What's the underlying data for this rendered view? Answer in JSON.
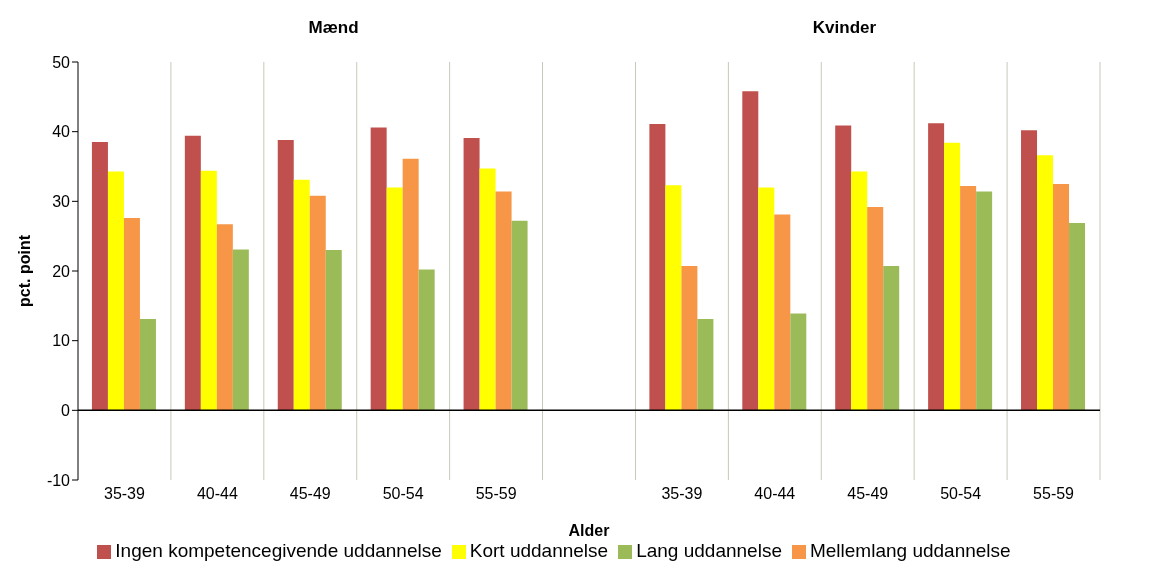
{
  "chart_data": {
    "type": "bar",
    "annotations": [
      "Mænd",
      "Kvinder"
    ],
    "xlabel": "Alder",
    "ylabel": "pct. point",
    "categories": [
      "35-39",
      "40-44",
      "45-49",
      "50-54",
      "55-59",
      null,
      "35-39",
      "40-44",
      "45-49",
      "50-54",
      "55-59"
    ],
    "series": [
      {
        "name": "Ingen kompetencegivende uddannelse",
        "color": "#c0504d",
        "values": [
          38.5,
          39.4,
          38.8,
          40.6,
          39.1,
          null,
          41.1,
          45.8,
          40.9,
          41.2,
          40.2
        ]
      },
      {
        "name": "Kort uddannelse",
        "color": "#ffff00",
        "values": [
          34.3,
          34.4,
          33.1,
          32.0,
          34.7,
          null,
          32.3,
          32.0,
          34.3,
          38.4,
          36.6
        ]
      },
      {
        "name": "Mellemlang uddannelse",
        "color": "#f79646",
        "values": [
          27.6,
          26.7,
          30.8,
          36.1,
          31.4,
          null,
          20.7,
          28.1,
          29.2,
          32.2,
          32.5
        ]
      },
      {
        "name": "Lang uddannelse",
        "color": "#9bbb59",
        "values": [
          13.1,
          23.1,
          23.0,
          20.2,
          27.2,
          null,
          13.1,
          13.9,
          20.7,
          31.4,
          26.9
        ]
      }
    ],
    "ylim": [
      -10,
      50
    ],
    "yticks": [
      -10,
      0,
      10,
      20,
      30,
      40,
      50
    ],
    "grid": "x",
    "legend": "bottom"
  }
}
